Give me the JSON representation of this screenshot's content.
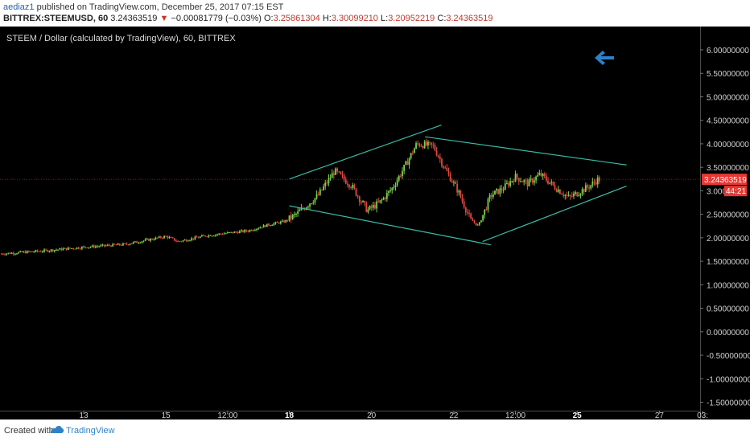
{
  "header": {
    "author": "aediaz1",
    "published_text": "published on TradingView.com, December 25, 2017 07:15 EST",
    "symbol": "BITTREX:STEEMUSD, 60",
    "last_price": "3.24363519",
    "change_arrow": "▼",
    "change": "−0.00081779 (−0.03%)",
    "open_label": "O:",
    "open": "3.25861304",
    "high_label": "H:",
    "high": "3.30099210",
    "low_label": "L:",
    "low": "3.20952219",
    "close_label": "C:",
    "close": "3.24363519"
  },
  "footer": {
    "created_with": "Created with",
    "brand": "TradingView"
  },
  "colors": {
    "background": "#000000",
    "up": "#7bd149",
    "down": "#e0493f",
    "trendline": "#3cb9a5",
    "price_marker": "#e53935",
    "arrow": "#2f80c8"
  },
  "chart_data": {
    "type": "candlestick",
    "title": "STEEM / Dollar (calculated by TradingView), 60, BITTREX",
    "ylim": [
      -1.6,
      6.3
    ],
    "y_ticks": [
      "6.00000000",
      "5.50000000",
      "5.00000000",
      "4.50000000",
      "4.00000000",
      "3.50000000",
      "3.000",
      "2.50000000",
      "2.00000000",
      "1.50000000",
      "1.00000000",
      "0.50000000",
      "0.00000000",
      "-0.50000000",
      "-1.00000000",
      "-1.50000000"
    ],
    "y_tick_values": [
      6.0,
      5.5,
      5.0,
      4.5,
      4.0,
      3.5,
      3.0,
      2.5,
      2.0,
      1.5,
      1.0,
      0.5,
      0.0,
      -0.5,
      -1.0,
      -1.5
    ],
    "x_range": [
      11.0,
      28.2
    ],
    "x_ticks": [
      {
        "label": "13",
        "x": 13.0
      },
      {
        "label": "15",
        "x": 15.0
      },
      {
        "label": "12:00",
        "x": 16.5
      },
      {
        "label": "18",
        "x": 18.0
      },
      {
        "label": "20",
        "x": 20.0
      },
      {
        "label": "22",
        "x": 22.0
      },
      {
        "label": "12:00",
        "x": 23.5
      },
      {
        "label": "25",
        "x": 25.0
      },
      {
        "label": "27",
        "x": 27.0
      },
      {
        "label": "03:",
        "x": 28.05
      }
    ],
    "x_tick_bold": [
      "18",
      "25"
    ],
    "last_price_label": "3.24363519",
    "countdown_label": "44:21",
    "price_anchors": [
      [
        11.0,
        1.66
      ],
      [
        12.0,
        1.72
      ],
      [
        13.0,
        1.8
      ],
      [
        13.5,
        1.83
      ],
      [
        14.0,
        1.86
      ],
      [
        15.0,
        2.03
      ],
      [
        15.3,
        1.92
      ],
      [
        16.0,
        2.05
      ],
      [
        17.0,
        2.15
      ],
      [
        17.5,
        2.28
      ],
      [
        17.9,
        2.35
      ],
      [
        18.2,
        2.52
      ],
      [
        18.7,
        2.9
      ],
      [
        19.1,
        3.42
      ],
      [
        19.5,
        3.12
      ],
      [
        19.9,
        2.58
      ],
      [
        20.2,
        2.75
      ],
      [
        20.5,
        3.05
      ],
      [
        20.8,
        3.5
      ],
      [
        21.1,
        4.0
      ],
      [
        21.5,
        3.95
      ],
      [
        21.8,
        3.45
      ],
      [
        22.1,
        3.0
      ],
      [
        22.4,
        2.4
      ],
      [
        22.6,
        2.25
      ],
      [
        22.9,
        2.9
      ],
      [
        23.2,
        3.05
      ],
      [
        23.5,
        3.3
      ],
      [
        23.8,
        3.15
      ],
      [
        24.1,
        3.35
      ],
      [
        24.5,
        3.05
      ],
      [
        24.8,
        2.85
      ],
      [
        25.1,
        3.0
      ],
      [
        25.3,
        3.1
      ],
      [
        25.5,
        3.24
      ]
    ],
    "trendlines": [
      {
        "x1": 18.0,
        "y1": 3.25,
        "x2": 21.7,
        "y2": 4.4
      },
      {
        "x1": 18.0,
        "y1": 2.68,
        "x2": 22.9,
        "y2": 1.85
      },
      {
        "x1": 21.3,
        "y1": 4.15,
        "x2": 26.2,
        "y2": 3.55
      },
      {
        "x1": 22.7,
        "y1": 1.92,
        "x2": 26.2,
        "y2": 3.1
      }
    ]
  }
}
